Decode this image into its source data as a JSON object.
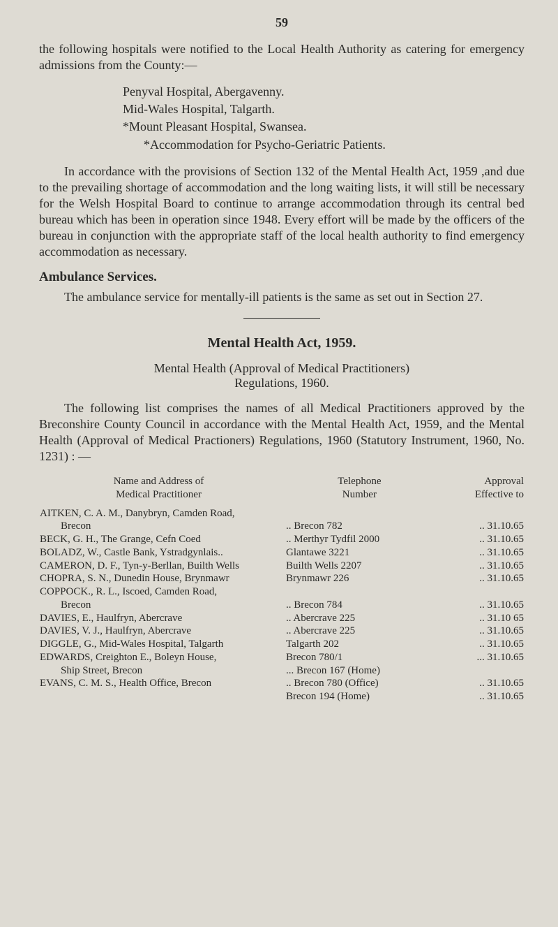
{
  "page_number": "59",
  "para1": "the following hospitals were notified to the Local Health Authority as catering for emergency admissions from the County:—",
  "hospitals": {
    "a": "Penyval Hospital, Abergavenny.",
    "b": "Mid-Wales Hospital, Talgarth.",
    "c": "*Mount Pleasant Hospital, Swansea.",
    "d": "*Accommodation for Psycho-Geriatric Patients."
  },
  "para2": "In accordance with the provisions of Section 132 of the Mental Health Act, 1959 ,and due to the prevailing shortage of accommodation and the long waiting lists, it will still be necessary for the Welsh Hospital Board to continue to arrange accommodation through its central bed bureau which has been in operation since 1948. Every effort will be made by the officers of the bureau in conjunction with the appropriate staff of the local health authority to find emergency accommodation as necessary.",
  "amb_head": "Ambulance Services.",
  "para3": "The ambulance service for mentally-ill patients is the same as set out in Section 27.",
  "act_head": "Mental Health Act, 1959.",
  "reg_line1": "Mental Health (Approval of Medical Practitioners)",
  "reg_line2": "Regulations, 1960.",
  "para4": "The following list comprises the names of all Medical Practitioners approved by the Breconshire County Council in accordance with the Mental Health Act, 1959, and the Mental Health (Approval of Medical Practioners) Regulations, 1960 (Statutory Instrument, 1960, No. 1231) : —",
  "tbl": {
    "h1a": "Name and Address of",
    "h1b": "Medical Practitioner",
    "h2": "Telephone",
    "h2b": "Number",
    "h3": "Approval",
    "h3b": "Effective to",
    "rows": [
      {
        "n": "AITKEN, C. A. M., Danybryn, Camden Road,",
        "t": "",
        "a": ""
      },
      {
        "n": "  Brecon",
        "t": ".. Brecon 782",
        "a": "..   31.10.65"
      },
      {
        "n": "BECK, G. H., The Grange, Cefn Coed",
        "t": ".. Merthyr Tydfil 2000",
        "a": "..   31.10.65"
      },
      {
        "n": "BOLADZ, W., Castle Bank, Ystradgynlais..",
        "t": "Glantawe 3221",
        "a": "..   31.10.65"
      },
      {
        "n": "CAMERON, D. F., Tyn-y-Berllan, Builth Wells",
        "t": "Builth Wells 2207",
        "a": "..   31.10.65"
      },
      {
        "n": "CHOPRA, S. N., Dunedin House, Brynmawr",
        "t": "Brynmawr 226",
        "a": "..   31.10.65"
      },
      {
        "n": "COPPOCK., R. L., Iscoed, Camden Road,",
        "t": "",
        "a": ""
      },
      {
        "n": "  Brecon",
        "t": ".. Brecon 784",
        "a": "..   31.10.65"
      },
      {
        "n": "DAVIES, E., Haulfryn, Abercrave",
        "t": ".. Abercrave 225",
        "a": "..   31.10 65"
      },
      {
        "n": "DAVIES, V. J., Haulfryn, Abercrave",
        "t": ".. Abercrave 225",
        "a": "..   31.10.65"
      },
      {
        "n": "DIGGLE, G., Mid-Wales Hospital, Talgarth",
        "t": "Talgarth 202",
        "a": "..   31.10.65"
      },
      {
        "n": "EDWARDS, Creighton E., Boleyn House,",
        "t": "Brecon 780/1",
        "a": "...   31.10.65"
      },
      {
        "n": "  Ship Street, Brecon",
        "t": "... Brecon 167 (Home)",
        "a": ""
      },
      {
        "n": "EVANS, C. M. S., Health Office, Brecon",
        "t": ".. Brecon 780 (Office)",
        "a": "..   31.10.65"
      },
      {
        "n": "",
        "t": "Brecon 194 (Home)",
        "a": "..   31.10.65"
      }
    ]
  }
}
